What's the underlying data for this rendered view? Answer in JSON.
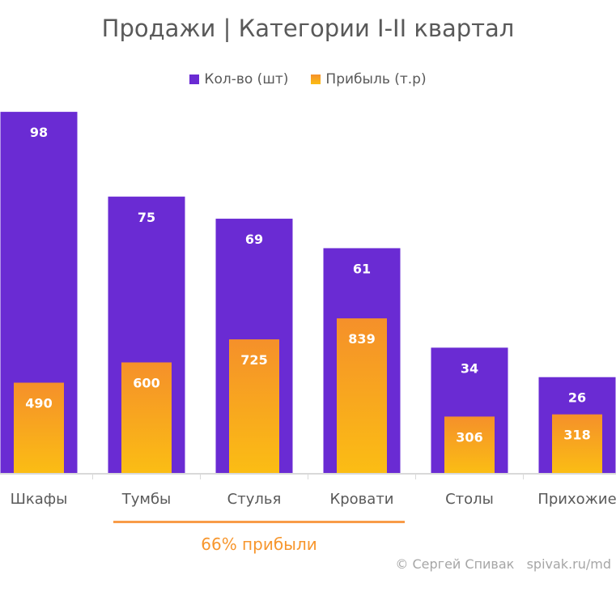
{
  "chart_data": {
    "type": "bar",
    "title": "Продажи | Категории I-II квартал",
    "categories": [
      "Шкафы",
      "Тумбы",
      "Стулья",
      "Кровати",
      "Столы",
      "Прихожие"
    ],
    "series": [
      {
        "name": "Кол-во (шт)",
        "values": [
          98,
          75,
          69,
          61,
          34,
          26
        ],
        "color": "#6a2bd3",
        "axis": "primary",
        "ylim": [
          0,
          100
        ]
      },
      {
        "name": "Прибыль (т.р)",
        "values": [
          490,
          600,
          725,
          839,
          306,
          318
        ],
        "color_top": "#f5902a",
        "color_bottom": "#fbbd14",
        "axis": "secondary",
        "ylim": [
          0,
          2000
        ]
      }
    ],
    "legend": "top",
    "grid": false,
    "annotation": {
      "text": "66% прибыли",
      "span": [
        "Тумбы",
        "Кровати"
      ],
      "color": "#f7962d"
    }
  },
  "footer": {
    "copyright": "© Сергей Спивак   spivak.ru/md"
  }
}
